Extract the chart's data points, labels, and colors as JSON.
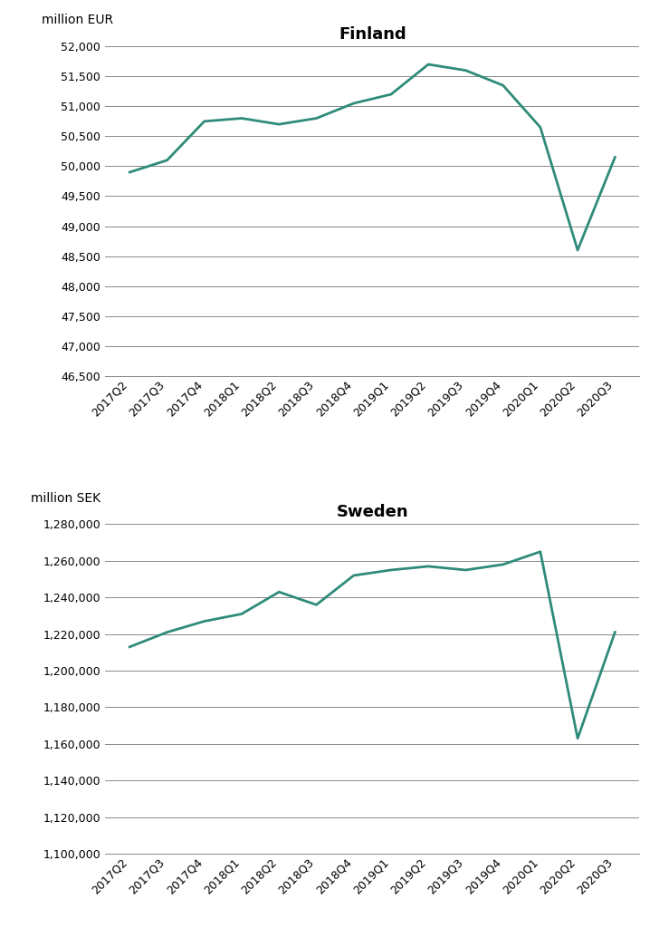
{
  "quarters": [
    "2017Q2",
    "2017Q3",
    "2017Q4",
    "2018Q1",
    "2018Q2",
    "2018Q3",
    "2018Q4",
    "2019Q1",
    "2019Q2",
    "2019Q3",
    "2019Q4",
    "2020Q1",
    "2020Q2",
    "2020Q3"
  ],
  "finland_values": [
    49900,
    50100,
    50750,
    50800,
    50700,
    50800,
    51050,
    51200,
    51700,
    51600,
    51350,
    50650,
    48600,
    50150
  ],
  "sweden_values": [
    1213000,
    1221000,
    1227000,
    1231000,
    1243000,
    1236000,
    1252000,
    1255000,
    1257000,
    1255000,
    1258000,
    1265000,
    1163000,
    1221000
  ],
  "finland_title": "Finland",
  "sweden_title": "Sweden",
  "finland_unit_label": "million EUR",
  "sweden_unit_label": "million SEK",
  "finland_ylim": [
    46500,
    52000
  ],
  "finland_yticks": [
    46500,
    47000,
    47500,
    48000,
    48500,
    49000,
    49500,
    50000,
    50500,
    51000,
    51500,
    52000
  ],
  "sweden_ylim": [
    1100000,
    1280000
  ],
  "sweden_yticks": [
    1100000,
    1120000,
    1140000,
    1160000,
    1180000,
    1200000,
    1220000,
    1240000,
    1260000,
    1280000
  ],
  "line_color": "#2e8b7a",
  "line_width": 2.0,
  "bg_color": "#ffffff",
  "grid_color": "#888888",
  "title_fontsize": 13,
  "unit_label_fontsize": 10,
  "tick_fontsize": 9
}
